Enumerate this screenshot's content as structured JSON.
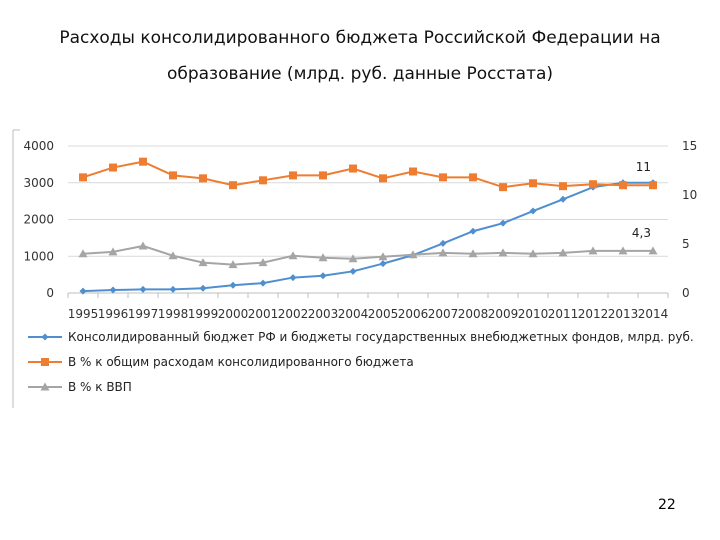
{
  "title_line1": "Расходы консолидированного бюджета Российской Федерации на",
  "title_line2": "образование (млрд. руб. данные Росстата)",
  "page_number": "22",
  "chart_data": {
    "type": "line",
    "categories": [
      "1995",
      "1996",
      "1997",
      "1998",
      "1999",
      "2000",
      "2001",
      "2002",
      "2003",
      "2004",
      "2005",
      "2006",
      "2007",
      "2008",
      "2009",
      "2010",
      "2011",
      "2012",
      "2013",
      "2014"
    ],
    "y_left": {
      "range": [
        0,
        4000
      ],
      "ticks": [
        "0",
        "1000",
        "2000",
        "3000",
        "4000"
      ]
    },
    "y_right": {
      "range": [
        0,
        15
      ],
      "ticks": [
        "0",
        "5",
        "10",
        "15"
      ]
    },
    "series": [
      {
        "name": "Консолидированный бюджет РФ и бюджеты государственных внебюджетных фондов, млрд. руб.",
        "axis": "left",
        "marker": "diamond",
        "color": "#4f8fd0",
        "values": [
          50,
          80,
          100,
          100,
          130,
          210,
          270,
          420,
          470,
          590,
          800,
          1030,
          1350,
          1680,
          1900,
          2230,
          2550,
          2880,
          3000,
          3000
        ]
      },
      {
        "name": "В % к общим расходам консолидированного бюджета",
        "axis": "right",
        "marker": "square",
        "color": "#ee7d31",
        "values": [
          11.8,
          12.8,
          13.4,
          12.0,
          11.7,
          11.0,
          11.5,
          12.0,
          12.0,
          12.7,
          11.7,
          12.4,
          11.8,
          11.8,
          10.8,
          11.2,
          10.9,
          11.1,
          11.0,
          11.0
        ]
      },
      {
        "name": "В % к ВВП",
        "axis": "right",
        "marker": "triangle",
        "color": "#a5a5a5",
        "values": [
          4.0,
          4.2,
          4.8,
          3.8,
          3.1,
          2.9,
          3.1,
          3.8,
          3.6,
          3.5,
          3.7,
          3.9,
          4.1,
          4.0,
          4.1,
          4.0,
          4.1,
          4.3,
          4.3,
          4.3
        ]
      }
    ],
    "annotations": [
      {
        "text": "11",
        "series": 1,
        "index": 19
      },
      {
        "text": "4,3",
        "series": 2,
        "index": 19
      }
    ],
    "grid": true,
    "legend_position": "bottom"
  }
}
